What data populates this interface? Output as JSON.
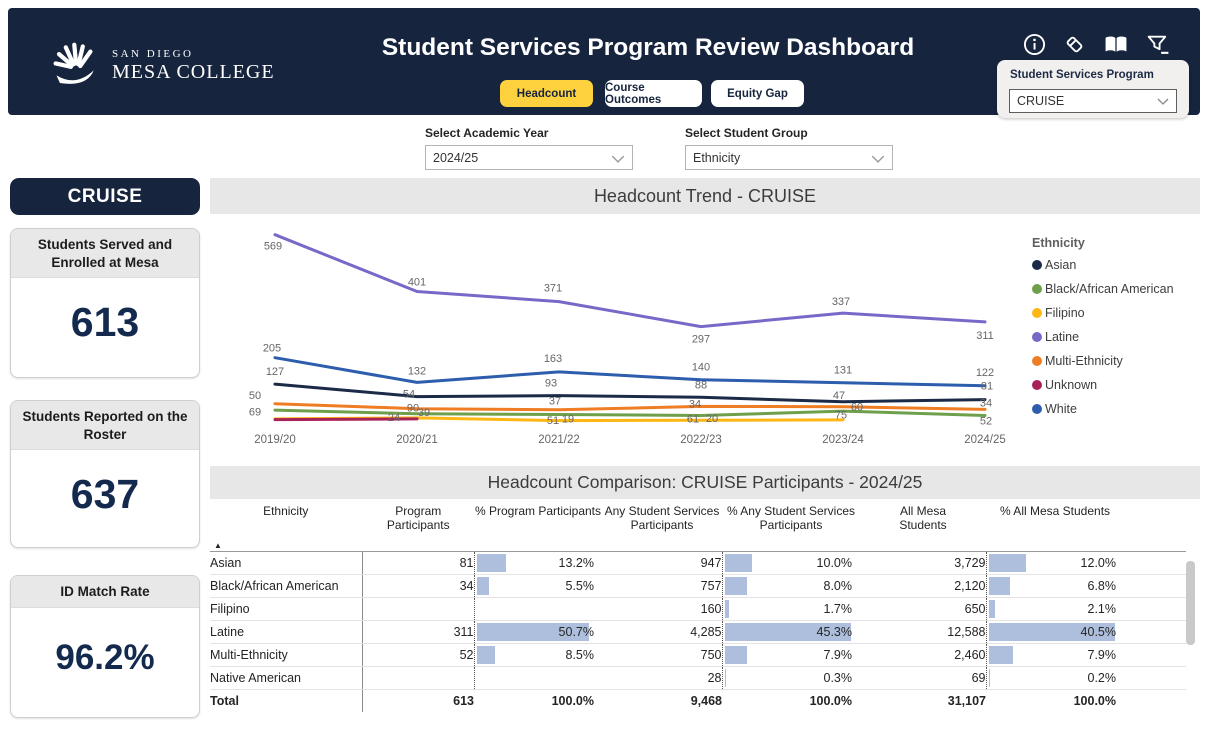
{
  "header": {
    "logo": {
      "line1": "SAN DIEGO",
      "line2": "MESA COLLEGE"
    },
    "title": "Student Services Program Review Dashboard",
    "icons": [
      "info-icon",
      "eraser-icon",
      "book-icon",
      "filter-icon"
    ],
    "tabs": [
      {
        "label": "Headcount",
        "active": true
      },
      {
        "label": "Course Outcomes",
        "active": false
      },
      {
        "label": "Equity Gap",
        "active": false
      }
    ],
    "program_filter": {
      "label": "Student Services Program",
      "value": "CRUISE"
    }
  },
  "filters": {
    "academic_year": {
      "label": "Select Academic Year",
      "value": "2024/25"
    },
    "student_group": {
      "label": "Select Student Group",
      "value": "Ethnicity"
    }
  },
  "sidebar": {
    "program_name": "CRUISE",
    "cards": [
      {
        "title": "Students Served and Enrolled at Mesa",
        "value": "613"
      },
      {
        "title": "Students Reported on the Roster",
        "value": "637"
      },
      {
        "title": "ID Match Rate",
        "value": "96.2%"
      }
    ]
  },
  "chart_data": [
    {
      "type": "line",
      "title": "Headcount Trend - CRUISE",
      "x_categories": [
        "2019/20",
        "2020/21",
        "2021/22",
        "2022/23",
        "2023/24",
        "2024/25"
      ],
      "legend_title": "Ethnicity",
      "legend_position": "right",
      "grid": false,
      "ylim": [
        0,
        630
      ],
      "series": [
        {
          "name": "Asian",
          "color": "#1b2a47",
          "values": [
            127,
            90,
            93,
            88,
            75,
            81
          ],
          "label_offsets": [
            [
              0,
              -9
            ],
            [
              -4,
              15
            ],
            [
              -8,
              -9
            ],
            [
              0,
              -9
            ],
            [
              -2,
              17
            ],
            [
              2,
              -10
            ]
          ]
        },
        {
          "name": "Black/African American",
          "color": "#6ea04c",
          "values": [
            50,
            39,
            37,
            34,
            47,
            34
          ],
          "label_offsets": [
            [
              -20,
              -11
            ],
            [
              7,
              2
            ],
            [
              -4,
              -10
            ],
            [
              -6,
              -8
            ],
            [
              -4,
              -12
            ],
            [
              1,
              -9
            ]
          ]
        },
        {
          "name": "Filipino",
          "color": "#fcb714",
          "values": [
            24,
            27,
            19,
            20,
            21,
            null
          ],
          "label_offsets": [
            null,
            null,
            [
              9,
              2
            ],
            [
              11,
              2
            ],
            null,
            null
          ]
        },
        {
          "name": "Latine",
          "color": "#7a68c9",
          "values": [
            569,
            401,
            371,
            297,
            337,
            311
          ],
          "label_offsets": [
            [
              -2,
              15
            ],
            [
              0,
              -6
            ],
            [
              -6,
              -10
            ],
            [
              0,
              16
            ],
            [
              -2,
              -8
            ],
            [
              0,
              17
            ]
          ]
        },
        {
          "name": "Multi-Ethnicity",
          "color": "#ee7d23",
          "values": [
            69,
            54,
            51,
            61,
            60,
            52
          ],
          "label_offsets": [
            [
              -20,
              12
            ],
            [
              -8,
              -11
            ],
            [
              -6,
              14
            ],
            [
              -8,
              16
            ],
            [
              14,
              4
            ],
            [
              1,
              15
            ]
          ]
        },
        {
          "name": "Unknown",
          "color": "#a92257",
          "values": [
            22,
            24,
            null,
            null,
            null,
            null
          ],
          "label_offsets": [
            null,
            [
              -23,
              2
            ],
            null,
            null,
            null,
            null
          ]
        },
        {
          "name": "White",
          "color": "#2d5dad",
          "values": [
            205,
            132,
            163,
            140,
            131,
            122
          ],
          "label_offsets": [
            [
              -3,
              -6
            ],
            [
              0,
              -8
            ],
            [
              -6,
              -10
            ],
            [
              0,
              -9
            ],
            [
              0,
              -9
            ],
            [
              0,
              -10
            ]
          ]
        }
      ]
    },
    {
      "type": "table",
      "title": "Headcount Comparison: CRUISE Participants - 2024/25",
      "columns": [
        "Ethnicity",
        "Program Participants",
        "% Program Participants",
        "Any Student Services Participants",
        "% Any Student Services Participants",
        "All Mesa Students",
        "% All Mesa Students"
      ],
      "bar_color": "#aebfde",
      "bar_max": {
        "pct_program": 50.7,
        "pct_any_ss": 45.3,
        "pct_all_mesa": 40.5
      },
      "rows": [
        {
          "ethnicity": "Asian",
          "program": "81",
          "pct_program": "13.2%",
          "any_ss": "947",
          "pct_any_ss": "10.0%",
          "all_mesa": "3,729",
          "pct_all_mesa": "12.0%"
        },
        {
          "ethnicity": "Black/African American",
          "program": "34",
          "pct_program": "5.5%",
          "any_ss": "757",
          "pct_any_ss": "8.0%",
          "all_mesa": "2,120",
          "pct_all_mesa": "6.8%"
        },
        {
          "ethnicity": "Filipino",
          "program": "",
          "pct_program": "",
          "any_ss": "160",
          "pct_any_ss": "1.7%",
          "all_mesa": "650",
          "pct_all_mesa": "2.1%"
        },
        {
          "ethnicity": "Latine",
          "program": "311",
          "pct_program": "50.7%",
          "any_ss": "4,285",
          "pct_any_ss": "45.3%",
          "all_mesa": "12,588",
          "pct_all_mesa": "40.5%"
        },
        {
          "ethnicity": "Multi-Ethnicity",
          "program": "52",
          "pct_program": "8.5%",
          "any_ss": "750",
          "pct_any_ss": "7.9%",
          "all_mesa": "2,460",
          "pct_all_mesa": "7.9%"
        },
        {
          "ethnicity": "Native American",
          "program": "",
          "pct_program": "",
          "any_ss": "28",
          "pct_any_ss": "0.3%",
          "all_mesa": "69",
          "pct_all_mesa": "0.2%"
        }
      ],
      "total_row": {
        "ethnicity": "Total",
        "program": "613",
        "pct_program": "100.0%",
        "any_ss": "9,468",
        "pct_any_ss": "100.0%",
        "all_mesa": "31,107",
        "pct_all_mesa": "100.0%"
      }
    }
  ]
}
